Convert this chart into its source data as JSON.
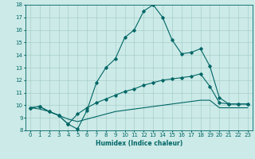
{
  "xlabel": "Humidex (Indice chaleur)",
  "xlim": [
    -0.5,
    23.5
  ],
  "ylim": [
    8,
    18
  ],
  "xticks": [
    0,
    1,
    2,
    3,
    4,
    5,
    6,
    7,
    8,
    9,
    10,
    11,
    12,
    13,
    14,
    15,
    16,
    17,
    18,
    19,
    20,
    21,
    22,
    23
  ],
  "yticks": [
    8,
    9,
    10,
    11,
    12,
    13,
    14,
    15,
    16,
    17,
    18
  ],
  "bg_color": "#cceae7",
  "line_color": "#006666",
  "line1_x": [
    0,
    1,
    2,
    3,
    4,
    5,
    6,
    7,
    8,
    9,
    10,
    11,
    12,
    13,
    14,
    15,
    16,
    17,
    18,
    19,
    20,
    21,
    22,
    23
  ],
  "line1_y": [
    9.8,
    9.9,
    9.5,
    9.2,
    8.5,
    8.1,
    9.6,
    11.8,
    13.0,
    13.7,
    15.4,
    16.0,
    17.5,
    18.0,
    17.0,
    15.2,
    14.1,
    14.2,
    14.5,
    13.1,
    10.6,
    10.1,
    10.1,
    10.1
  ],
  "line2_x": [
    0,
    1,
    2,
    3,
    4,
    5,
    6,
    7,
    8,
    9,
    10,
    11,
    12,
    13,
    14,
    15,
    16,
    17,
    18,
    19,
    20,
    21,
    22,
    23
  ],
  "line2_y": [
    9.8,
    9.9,
    9.5,
    9.2,
    8.5,
    9.3,
    9.8,
    10.2,
    10.5,
    10.8,
    11.1,
    11.3,
    11.6,
    11.8,
    12.0,
    12.1,
    12.2,
    12.3,
    12.5,
    11.5,
    10.2,
    10.1,
    10.1,
    10.1
  ],
  "line3_x": [
    0,
    1,
    2,
    3,
    4,
    5,
    6,
    7,
    8,
    9,
    10,
    11,
    12,
    13,
    14,
    15,
    16,
    17,
    18,
    19,
    20,
    21,
    22,
    23
  ],
  "line3_y": [
    9.8,
    9.7,
    9.5,
    9.2,
    8.9,
    8.7,
    8.9,
    9.1,
    9.3,
    9.5,
    9.6,
    9.7,
    9.8,
    9.9,
    10.0,
    10.1,
    10.2,
    10.3,
    10.4,
    10.4,
    9.8,
    9.8,
    9.8,
    9.8
  ]
}
